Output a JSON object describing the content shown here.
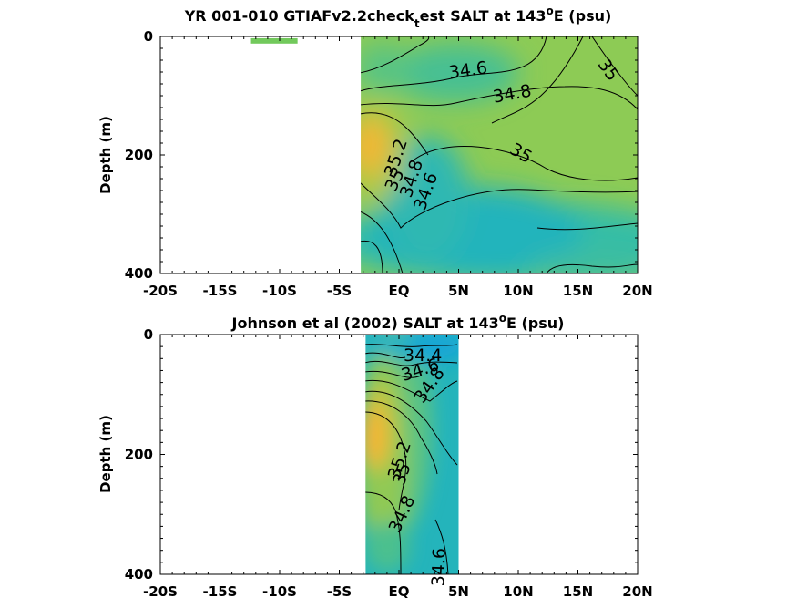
{
  "chart_data": [
    {
      "type": "heatmap",
      "panel": "model",
      "title": "YR 001-010 GTIAFv2.2check",
      "title_sub": "t",
      "title_rest": "est SALT at 143",
      "title_sup": "o",
      "title_end": "E (psu)",
      "ylabel": "Depth (m)",
      "xlim": [
        -20,
        20
      ],
      "ylim": [
        400,
        0
      ],
      "x_ticks": [
        -20,
        -15,
        -10,
        -5,
        0,
        5,
        10,
        15,
        20
      ],
      "x_tick_labels": [
        "-20S",
        "-15S",
        "-10S",
        "-5S",
        "EQ",
        "5N",
        "10N",
        "15N",
        "20N"
      ],
      "y_ticks": [
        0,
        200,
        400
      ],
      "y_tick_labels": [
        "0",
        "200",
        "400"
      ],
      "data_extent_lat": [
        -3.2,
        20
      ],
      "extra_patch": {
        "lat": [
          -12.4,
          -8.5
        ],
        "depth": [
          3,
          12
        ],
        "color": "#72c95c"
      },
      "contour_labels": [
        {
          "text": "34.6",
          "lat": 5.8,
          "depth": 58,
          "angle": -8
        },
        {
          "text": "34.8",
          "lat": 9.5,
          "depth": 98,
          "angle": -10
        },
        {
          "text": "35",
          "lat": 17.5,
          "depth": 57,
          "angle": 55
        },
        {
          "text": "35",
          "lat": 10.2,
          "depth": 198,
          "angle": 30
        },
        {
          "text": "35.2",
          "lat": -0.2,
          "depth": 205,
          "angle": -72
        },
        {
          "text": "35",
          "lat": -0.3,
          "depth": 243,
          "angle": -65
        },
        {
          "text": "34.8",
          "lat": 1.1,
          "depth": 240,
          "angle": -72
        },
        {
          "text": "34.6",
          "lat": 2.3,
          "depth": 262,
          "angle": -70
        }
      ],
      "colors": {
        "high": "#f5b632",
        "mid": "#7cc85a",
        "low": "#22b6bc",
        "lowest": "#19a7d6"
      }
    },
    {
      "type": "heatmap",
      "panel": "observed",
      "title": "Johnson et al (2002) SALT at 143",
      "title_sup": "o",
      "title_end": "E (psu)",
      "ylabel": "Depth (m)",
      "xlim": [
        -20,
        20
      ],
      "ylim": [
        400,
        0
      ],
      "x_ticks": [
        -20,
        -15,
        -10,
        -5,
        0,
        5,
        10,
        15,
        20
      ],
      "x_tick_labels": [
        "-20S",
        "-15S",
        "-10S",
        "-5S",
        "EQ",
        "5N",
        "10N",
        "15N",
        "20N"
      ],
      "y_ticks": [
        0,
        200,
        400
      ],
      "y_tick_labels": [
        "0",
        "200",
        "400"
      ],
      "data_extent_lat": [
        -2.8,
        5
      ],
      "contour_labels": [
        {
          "text": "34.4",
          "lat": 2.0,
          "depth": 36,
          "angle": 0
        },
        {
          "text": "34.6",
          "lat": 1.8,
          "depth": 60,
          "angle": -18
        },
        {
          "text": "34.8",
          "lat": 2.6,
          "depth": 85,
          "angle": -55
        },
        {
          "text": "35.2",
          "lat": 0.1,
          "depth": 210,
          "angle": -72
        },
        {
          "text": "35",
          "lat": 0.3,
          "depth": 233,
          "angle": -72
        },
        {
          "text": "34.8",
          "lat": 0.3,
          "depth": 300,
          "angle": -65
        },
        {
          "text": "34.6",
          "lat": 3.4,
          "depth": 388,
          "angle": -88
        }
      ],
      "colors": {
        "high": "#f5b632",
        "mid": "#7cc85a",
        "low": "#22b6bc",
        "lowest": "#19a7d6"
      }
    }
  ]
}
